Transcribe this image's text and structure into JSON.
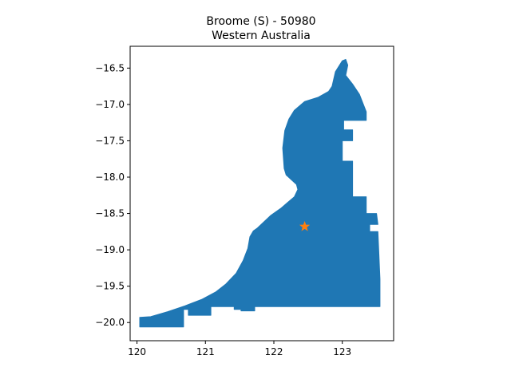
{
  "chart_data": {
    "type": "map",
    "title_line1": "Broome (S) - 50980",
    "title_line2": "Western Australia",
    "xlabel": "",
    "ylabel": "",
    "xlim": [
      119.9,
      123.75
    ],
    "ylim": [
      -20.25,
      -16.2
    ],
    "x_ticks": [
      120,
      121,
      122,
      123
    ],
    "x_tick_labels": [
      "120",
      "121",
      "122",
      "123"
    ],
    "y_ticks": [
      -16.5,
      -17.0,
      -17.5,
      -18.0,
      -18.5,
      -19.0,
      -19.5,
      -20.0
    ],
    "y_tick_labels": [
      "−16.5",
      "−17.0",
      "−17.5",
      "−18.0",
      "−18.5",
      "−19.0",
      "−19.5",
      "−20.0"
    ],
    "grid": false,
    "region_color": "#1f77b4",
    "marker_color": "#ff7f0e",
    "marker_shape": "star",
    "marker_point": [
      122.45,
      -18.68
    ],
    "region_outline": [
      [
        120.04,
        -20.06
      ],
      [
        120.04,
        -19.93
      ],
      [
        120.2,
        -19.92
      ],
      [
        120.45,
        -19.85
      ],
      [
        120.7,
        -19.77
      ],
      [
        120.95,
        -19.68
      ],
      [
        121.15,
        -19.58
      ],
      [
        121.3,
        -19.47
      ],
      [
        121.45,
        -19.32
      ],
      [
        121.55,
        -19.15
      ],
      [
        121.62,
        -18.98
      ],
      [
        121.65,
        -18.82
      ],
      [
        121.7,
        -18.74
      ],
      [
        121.76,
        -18.7
      ],
      [
        121.85,
        -18.62
      ],
      [
        121.95,
        -18.53
      ],
      [
        122.1,
        -18.43
      ],
      [
        122.2,
        -18.35
      ],
      [
        122.3,
        -18.27
      ],
      [
        122.35,
        -18.17
      ],
      [
        122.33,
        -18.1
      ],
      [
        122.18,
        -17.97
      ],
      [
        122.15,
        -17.88
      ],
      [
        122.13,
        -17.6
      ],
      [
        122.16,
        -17.36
      ],
      [
        122.22,
        -17.2
      ],
      [
        122.3,
        -17.08
      ],
      [
        122.45,
        -16.96
      ],
      [
        122.65,
        -16.9
      ],
      [
        122.8,
        -16.82
      ],
      [
        122.85,
        -16.75
      ],
      [
        122.9,
        -16.55
      ],
      [
        123.0,
        -16.4
      ],
      [
        123.05,
        -16.38
      ],
      [
        123.08,
        -16.46
      ],
      [
        123.05,
        -16.6
      ],
      [
        123.15,
        -16.72
      ],
      [
        123.25,
        -16.86
      ],
      [
        123.35,
        -17.1
      ],
      [
        123.35,
        -17.22
      ],
      [
        123.02,
        -17.22
      ],
      [
        123.02,
        -17.35
      ],
      [
        123.15,
        -17.35
      ],
      [
        123.15,
        -17.5
      ],
      [
        123.0,
        -17.5
      ],
      [
        123.0,
        -17.78
      ],
      [
        123.15,
        -17.78
      ],
      [
        123.15,
        -18.27
      ],
      [
        123.35,
        -18.27
      ],
      [
        123.35,
        -18.5
      ],
      [
        123.5,
        -18.5
      ],
      [
        123.52,
        -18.65
      ],
      [
        123.4,
        -18.65
      ],
      [
        123.4,
        -18.75
      ],
      [
        123.52,
        -18.75
      ],
      [
        123.55,
        -19.4
      ],
      [
        123.55,
        -19.78
      ],
      [
        121.72,
        -19.78
      ],
      [
        121.72,
        -19.84
      ],
      [
        121.52,
        -19.84
      ],
      [
        121.52,
        -19.82
      ],
      [
        121.42,
        -19.82
      ],
      [
        121.42,
        -19.78
      ],
      [
        121.08,
        -19.78
      ],
      [
        121.08,
        -19.9
      ],
      [
        120.75,
        -19.9
      ],
      [
        120.75,
        -19.82
      ],
      [
        120.68,
        -19.82
      ],
      [
        120.68,
        -20.06
      ]
    ]
  }
}
